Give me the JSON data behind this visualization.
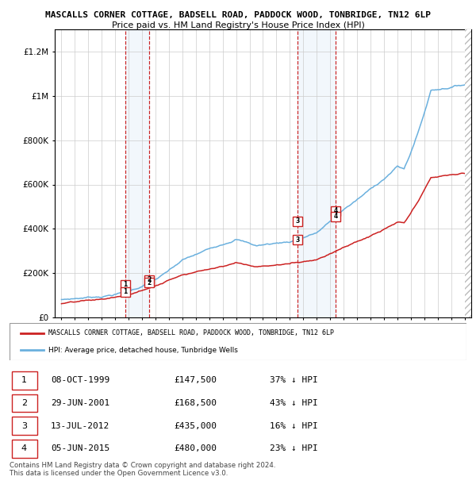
{
  "title": "MASCALLS CORNER COTTAGE, BADSELL ROAD, PADDOCK WOOD, TONBRIDGE, TN12 6LP",
  "subtitle": "Price paid vs. HM Land Registry's House Price Index (HPI)",
  "hpi_color": "#6ab0de",
  "price_color": "#cc2222",
  "sale_year_nums": [
    1999.75,
    2001.5,
    2012.583,
    2015.417
  ],
  "sale_prices": [
    147500,
    168500,
    435000,
    480000
  ],
  "sale_labels": [
    "1",
    "2",
    "3",
    "4"
  ],
  "legend_entries": [
    "MASCALLS CORNER COTTAGE, BADSELL ROAD, PADDOCK WOOD, TONBRIDGE, TN12 6LP",
    "HPI: Average price, detached house, Tunbridge Wells"
  ],
  "table_rows": [
    [
      "1",
      "08-OCT-1999",
      "£147,500",
      "37% ↓ HPI"
    ],
    [
      "2",
      "29-JUN-2001",
      "£168,500",
      "43% ↓ HPI"
    ],
    [
      "3",
      "13-JUL-2012",
      "£435,000",
      "16% ↓ HPI"
    ],
    [
      "4",
      "05-JUN-2015",
      "£480,000",
      "23% ↓ HPI"
    ]
  ],
  "footer": "Contains HM Land Registry data © Crown copyright and database right 2024.\nThis data is licensed under the Open Government Licence v3.0.",
  "ylim": [
    0,
    1300000
  ],
  "yticks": [
    0,
    200000,
    400000,
    600000,
    800000,
    1000000,
    1200000
  ],
  "ytick_labels": [
    "£0",
    "£200K",
    "£400K",
    "£600K",
    "£800K",
    "£1M",
    "£1.2M"
  ],
  "background_color": "#ffffff",
  "shading_color": "#cce0f5",
  "xlim_start": 1994.5,
  "xlim_end": 2025.5,
  "x_start_year": 1995,
  "x_end_year": 2025
}
